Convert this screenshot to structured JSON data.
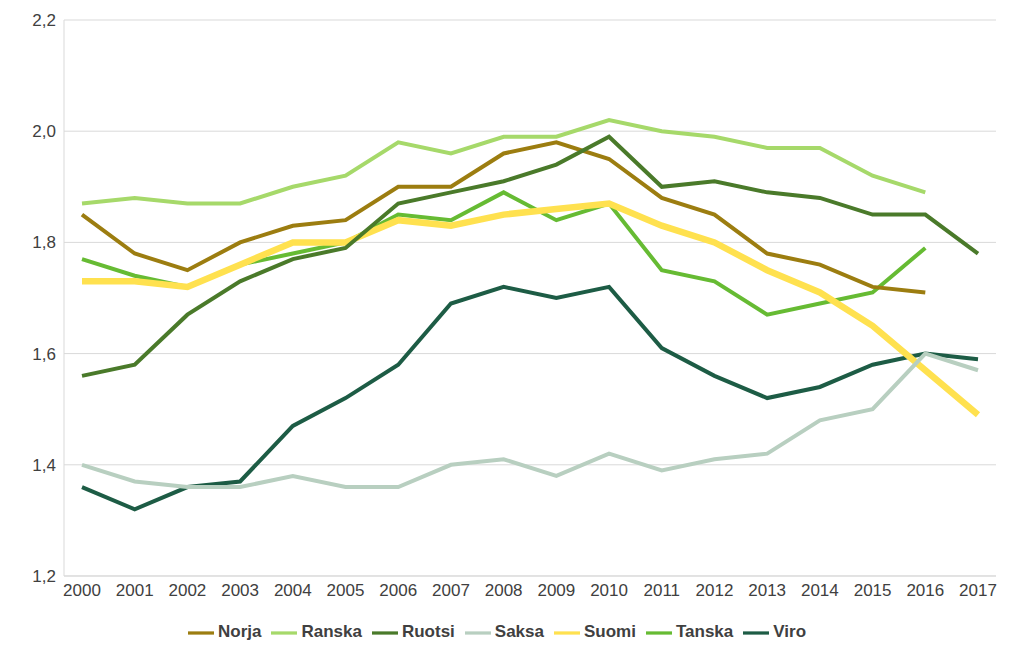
{
  "chart_data": {
    "type": "line",
    "categories": [
      "2000",
      "2001",
      "2002",
      "2003",
      "2004",
      "2005",
      "2006",
      "2007",
      "2008",
      "2009",
      "2010",
      "2011",
      "2012",
      "2013",
      "2014",
      "2015",
      "2016",
      "2017"
    ],
    "series": [
      {
        "name": "Tanska",
        "color": "#66bb33",
        "values": [
          1.77,
          1.74,
          1.72,
          1.76,
          1.78,
          1.8,
          1.85,
          1.84,
          1.89,
          1.84,
          1.87,
          1.75,
          1.73,
          1.67,
          1.69,
          1.71,
          1.79,
          null
        ]
      },
      {
        "name": "Viro",
        "color": "#1d5c45",
        "values": [
          1.36,
          1.32,
          1.36,
          1.37,
          1.47,
          1.52,
          1.58,
          1.69,
          1.72,
          1.7,
          1.72,
          1.61,
          1.56,
          1.52,
          1.54,
          1.58,
          1.6,
          1.59
        ]
      },
      {
        "name": "Suomi",
        "color": "#ffe14f",
        "values": [
          1.73,
          1.73,
          1.72,
          1.76,
          1.8,
          1.8,
          1.84,
          1.83,
          1.85,
          1.86,
          1.87,
          1.83,
          1.8,
          1.75,
          1.71,
          1.65,
          1.57,
          1.49
        ]
      },
      {
        "name": "Ranska",
        "color": "#a6d96a",
        "values": [
          1.87,
          1.88,
          1.87,
          1.87,
          1.9,
          1.92,
          1.98,
          1.96,
          1.99,
          1.99,
          2.02,
          2.0,
          1.99,
          1.97,
          1.97,
          1.92,
          1.89,
          null
        ]
      },
      {
        "name": "Saksa",
        "color": "#b8cfc0",
        "values": [
          1.4,
          1.37,
          1.36,
          1.36,
          1.38,
          1.36,
          1.36,
          1.4,
          1.41,
          1.38,
          1.42,
          1.39,
          1.41,
          1.42,
          1.48,
          1.5,
          1.6,
          1.57
        ]
      },
      {
        "name": "Norja",
        "color": "#9c7d10",
        "values": [
          1.85,
          1.78,
          1.75,
          1.8,
          1.83,
          1.84,
          1.9,
          1.9,
          1.96,
          1.98,
          1.95,
          1.88,
          1.85,
          1.78,
          1.76,
          1.72,
          1.71,
          null
        ]
      },
      {
        "name": "Ruotsi",
        "color": "#4a7a2a",
        "values": [
          1.56,
          1.58,
          1.67,
          1.73,
          1.77,
          1.79,
          1.87,
          1.89,
          1.91,
          1.94,
          1.99,
          1.9,
          1.91,
          1.89,
          1.88,
          1.85,
          1.85,
          1.78
        ]
      }
    ],
    "ylim": [
      1.2,
      2.2
    ],
    "yticks": [
      {
        "value": 1.2,
        "label": "1,2"
      },
      {
        "value": 1.4,
        "label": "1,4"
      },
      {
        "value": 1.6,
        "label": "1,6"
      },
      {
        "value": 1.8,
        "label": "1,8"
      },
      {
        "value": 2.0,
        "label": "2,0"
      },
      {
        "value": 2.2,
        "label": "2,2"
      }
    ],
    "grid": true,
    "legend": "bottom"
  }
}
